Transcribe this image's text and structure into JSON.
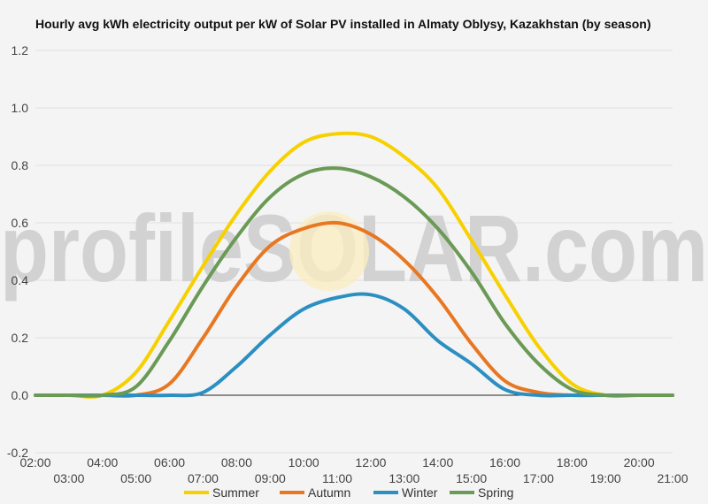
{
  "chart_data": {
    "type": "line",
    "title": "Hourly avg kWh electricity output per kW of Solar PV installed in Almaty Oblysy, Kazakhstan (by season)",
    "xlabel": "",
    "ylabel": "",
    "ylim": [
      -0.2,
      1.2
    ],
    "yticks": [
      "-0.2",
      "0.0",
      "0.2",
      "0.4",
      "0.6",
      "0.8",
      "1.0",
      "1.2"
    ],
    "xlim": [
      2,
      21
    ],
    "xticks_row1": [
      "02:00",
      "04:00",
      "06:00",
      "08:00",
      "10:00",
      "12:00",
      "14:00",
      "16:00",
      "18:00",
      "20:00"
    ],
    "xticks_row2": [
      "03:00",
      "05:00",
      "07:00",
      "09:00",
      "11:00",
      "13:00",
      "15:00",
      "17:00",
      "19:00",
      "21:00"
    ],
    "x": [
      2,
      3,
      4,
      5,
      6,
      7,
      8,
      9,
      10,
      11,
      12,
      13,
      14,
      15,
      16,
      17,
      18,
      19,
      20,
      21
    ],
    "grid": true,
    "legend_position": "bottom",
    "watermark": "profileSOLAR.com",
    "series": [
      {
        "name": "Summer",
        "color": "#f7d000",
        "values": [
          0,
          0,
          0,
          0.08,
          0.26,
          0.45,
          0.63,
          0.78,
          0.88,
          0.91,
          0.9,
          0.83,
          0.72,
          0.54,
          0.35,
          0.17,
          0.04,
          0,
          0,
          0
        ]
      },
      {
        "name": "Autumn",
        "color": "#e87722",
        "values": [
          0,
          0,
          0,
          0,
          0.04,
          0.2,
          0.38,
          0.52,
          0.58,
          0.6,
          0.56,
          0.47,
          0.34,
          0.18,
          0.05,
          0.01,
          0,
          0,
          0,
          0
        ]
      },
      {
        "name": "Winter",
        "color": "#2c8fc1",
        "values": [
          0,
          0,
          0,
          0,
          0,
          0.01,
          0.1,
          0.21,
          0.3,
          0.34,
          0.35,
          0.3,
          0.19,
          0.11,
          0.02,
          0,
          0,
          0,
          0,
          0
        ]
      },
      {
        "name": "Spring",
        "color": "#6a9a55",
        "values": [
          0,
          0,
          0,
          0.03,
          0.19,
          0.38,
          0.55,
          0.69,
          0.77,
          0.79,
          0.76,
          0.69,
          0.58,
          0.43,
          0.25,
          0.11,
          0.02,
          0,
          0,
          0
        ]
      }
    ]
  }
}
